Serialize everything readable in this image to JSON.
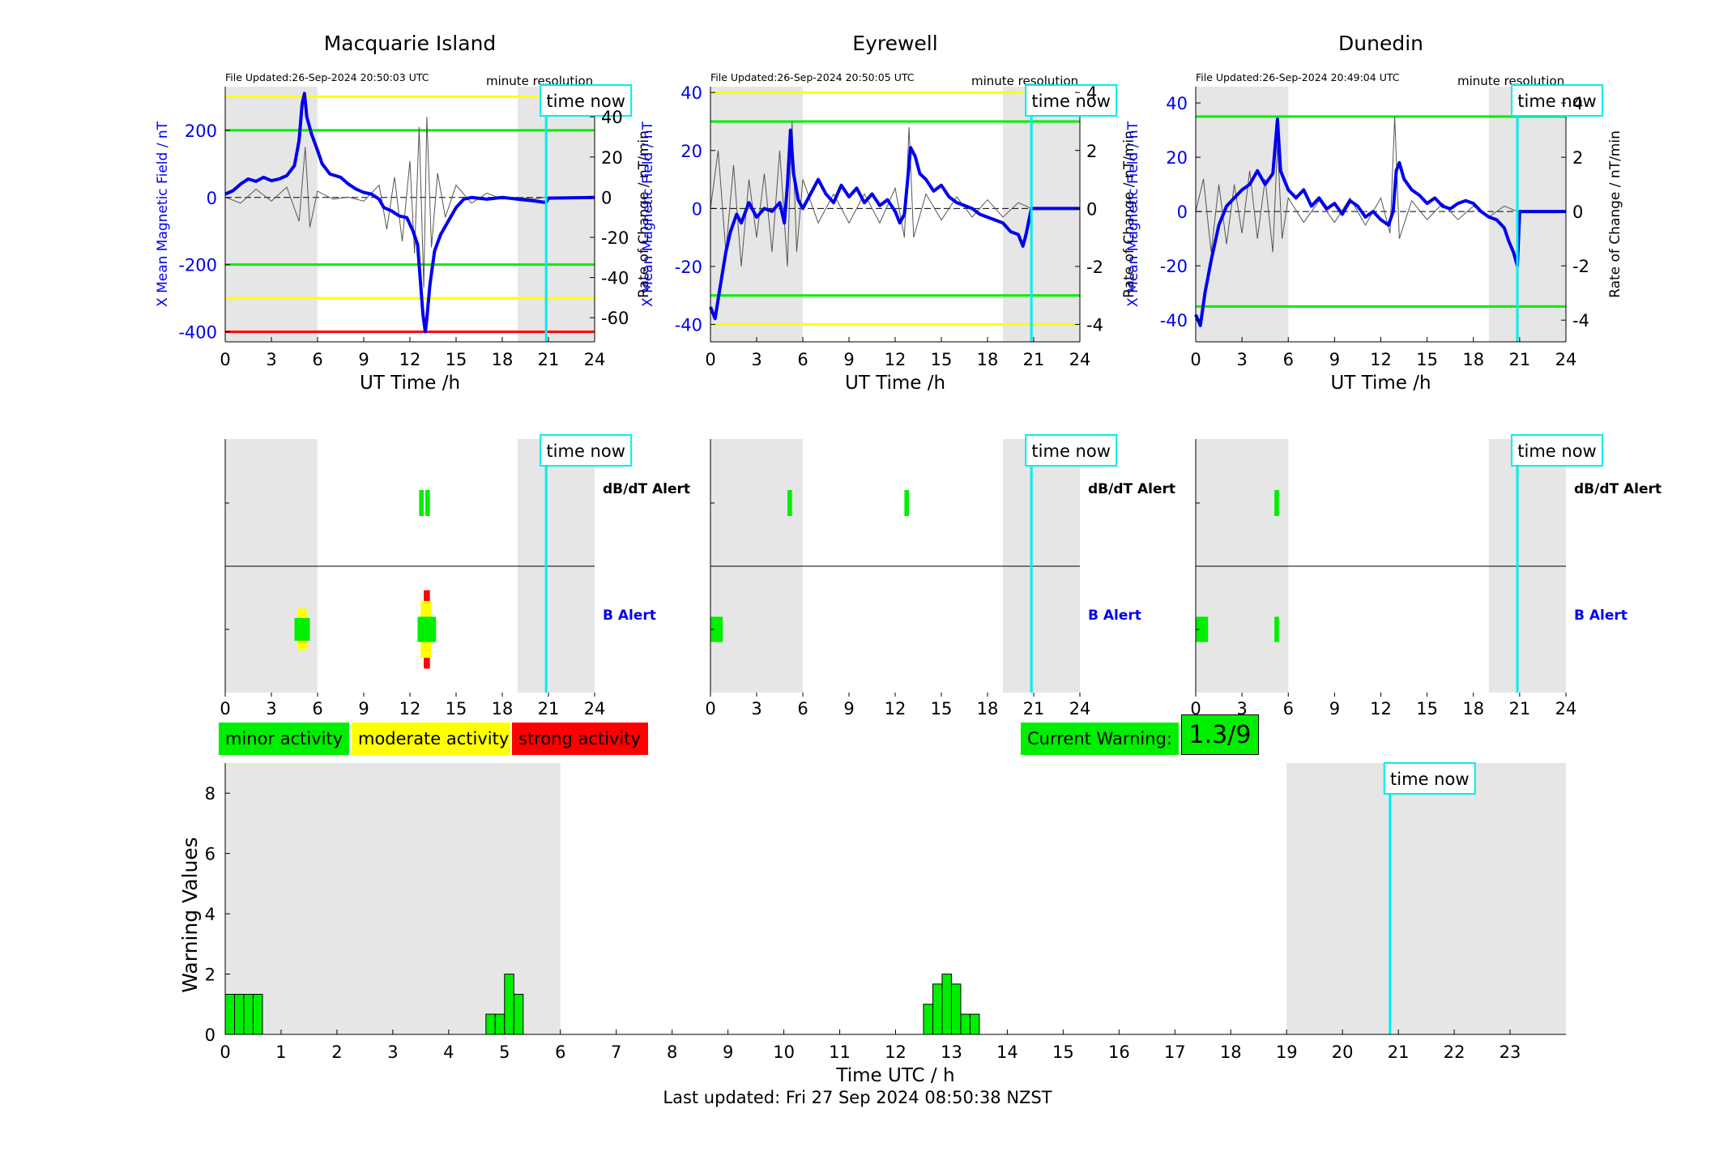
{
  "colors": {
    "shade": "#e6e6e6",
    "field": "#0000ee",
    "rate": "#555555",
    "minor": "#00ee00",
    "moderate": "#ffff00",
    "strong": "#ff0000",
    "now": "#00eeee",
    "b_alert_label": "#0000ee"
  },
  "time_now_label": "time now",
  "minute_resolution": "minute resolution",
  "xlabel": "UT Time /h",
  "left_ylabel": "X Mean Magnetic Field / nT",
  "right_ylabel": "Rate of Change / nT/min",
  "dbdt_label": "dB/dT Alert",
  "b_label": "B Alert",
  "legend": {
    "minor": "minor activity",
    "moderate": "moderate activity",
    "strong": "strong activity"
  },
  "current_warning": {
    "label": "Current Warning:",
    "value": "1.3/9"
  },
  "footer": "Last updated: Fri 27 Sep 2024 08:50:38 NZST",
  "chart_data": [
    {
      "type": "line",
      "station": "Macquarie Island",
      "file_updated": "File Updated:26-Sep-2024 20:50:03 UTC",
      "xlim": [
        0,
        24
      ],
      "ylim": [
        -430,
        330
      ],
      "yticks": [
        -400,
        -200,
        0,
        200
      ],
      "y2lim": [
        -72,
        55
      ],
      "y2ticks": [
        -60,
        -40,
        -20,
        0,
        20,
        40
      ],
      "shade": [
        [
          0,
          6
        ],
        [
          19,
          24
        ]
      ],
      "time_now": 20.85,
      "thresholds": [
        {
          "y": 300,
          "color": "#ffff00"
        },
        {
          "y": 200,
          "color": "#00ee00"
        },
        {
          "y": -200,
          "color": "#00ee00"
        },
        {
          "y": -300,
          "color": "#ffff00"
        },
        {
          "y": -400,
          "color": "#ff0000"
        }
      ],
      "field": [
        [
          0,
          10
        ],
        [
          0.5,
          20
        ],
        [
          1,
          40
        ],
        [
          1.5,
          55
        ],
        [
          2,
          48
        ],
        [
          2.5,
          60
        ],
        [
          3,
          50
        ],
        [
          3.5,
          55
        ],
        [
          4,
          65
        ],
        [
          4.5,
          95
        ],
        [
          4.8,
          170
        ],
        [
          5,
          280
        ],
        [
          5.15,
          310
        ],
        [
          5.3,
          240
        ],
        [
          5.6,
          190
        ],
        [
          6,
          140
        ],
        [
          6.3,
          100
        ],
        [
          6.8,
          70
        ],
        [
          7.5,
          60
        ],
        [
          8,
          40
        ],
        [
          8.5,
          25
        ],
        [
          9,
          15
        ],
        [
          9.5,
          10
        ],
        [
          10,
          -5
        ],
        [
          10.3,
          -30
        ],
        [
          10.8,
          -40
        ],
        [
          11.3,
          -55
        ],
        [
          11.8,
          -60
        ],
        [
          12.2,
          -100
        ],
        [
          12.5,
          -140
        ],
        [
          12.7,
          -260
        ],
        [
          12.85,
          -350
        ],
        [
          13,
          -400
        ],
        [
          13.1,
          -360
        ],
        [
          13.3,
          -260
        ],
        [
          13.6,
          -160
        ],
        [
          14,
          -110
        ],
        [
          14.5,
          -70
        ],
        [
          15,
          -30
        ],
        [
          15.5,
          -5
        ],
        [
          16,
          0
        ],
        [
          17,
          -5
        ],
        [
          18,
          0
        ],
        [
          19,
          -5
        ],
        [
          20,
          -10
        ],
        [
          20.85,
          -15
        ],
        [
          21,
          -2
        ],
        [
          24,
          0
        ]
      ],
      "rate": [
        [
          0,
          0
        ],
        [
          1,
          -3
        ],
        [
          2,
          4
        ],
        [
          3,
          -2
        ],
        [
          4,
          5
        ],
        [
          4.8,
          -12
        ],
        [
          5.2,
          25
        ],
        [
          5.5,
          -15
        ],
        [
          6,
          3
        ],
        [
          7,
          -1
        ],
        [
          8,
          0
        ],
        [
          9,
          -2
        ],
        [
          10,
          6
        ],
        [
          10.5,
          -16
        ],
        [
          11,
          10
        ],
        [
          11.5,
          -22
        ],
        [
          12,
          18
        ],
        [
          12.3,
          -28
        ],
        [
          12.6,
          35
        ],
        [
          12.9,
          -45
        ],
        [
          13.1,
          40
        ],
        [
          13.4,
          -25
        ],
        [
          13.8,
          12
        ],
        [
          14.3,
          -10
        ],
        [
          15,
          6
        ],
        [
          16,
          -3
        ],
        [
          17,
          2
        ],
        [
          18,
          -1
        ],
        [
          19,
          0
        ],
        [
          20,
          -1
        ],
        [
          20.85,
          0
        ],
        [
          24,
          0
        ]
      ],
      "alerts": {
        "dbdt": [
          {
            "x0": 12.6,
            "x1": 12.9,
            "color": "#00ee00"
          },
          {
            "x0": 13.0,
            "x1": 13.3,
            "color": "#00ee00"
          }
        ],
        "b": [
          {
            "x0": 4.7,
            "x1": 5.3,
            "tall": 0.33,
            "color": "#ffff00"
          },
          {
            "x0": 4.5,
            "x1": 5.5,
            "tall": 0.18,
            "color": "#00ee00"
          },
          {
            "x0": 12.9,
            "x1": 13.3,
            "tall": 0.62,
            "color": "#ff0000"
          },
          {
            "x0": 12.7,
            "x1": 13.4,
            "tall": 0.45,
            "color": "#ffff00"
          },
          {
            "x0": 12.5,
            "x1": 13.7,
            "tall": 0.2,
            "color": "#00ee00"
          }
        ]
      }
    },
    {
      "type": "line",
      "station": "Eyrewell",
      "file_updated": "File Updated:26-Sep-2024 20:50:05 UTC",
      "xlim": [
        0,
        24
      ],
      "ylim": [
        -46,
        42
      ],
      "yticks": [
        -40,
        -20,
        0,
        20,
        40
      ],
      "y2lim": [
        -4.6,
        4.2
      ],
      "y2ticks": [
        -4,
        -2,
        0,
        2,
        4
      ],
      "shade": [
        [
          0,
          6
        ],
        [
          19,
          24
        ]
      ],
      "time_now": 20.85,
      "thresholds": [
        {
          "y": 40,
          "color": "#ffff00"
        },
        {
          "y": 30,
          "color": "#00ee00"
        },
        {
          "y": -30,
          "color": "#00ee00"
        },
        {
          "y": -40,
          "color": "#ffff00"
        }
      ],
      "field": [
        [
          0,
          -34
        ],
        [
          0.3,
          -38
        ],
        [
          0.6,
          -28
        ],
        [
          1,
          -15
        ],
        [
          1.3,
          -8
        ],
        [
          1.7,
          -2
        ],
        [
          2,
          -5
        ],
        [
          2.5,
          2
        ],
        [
          3,
          -3
        ],
        [
          3.5,
          0
        ],
        [
          4,
          -1
        ],
        [
          4.5,
          2
        ],
        [
          4.8,
          -5
        ],
        [
          5,
          8
        ],
        [
          5.2,
          27
        ],
        [
          5.4,
          12
        ],
        [
          5.7,
          3
        ],
        [
          6,
          0
        ],
        [
          6.5,
          5
        ],
        [
          7,
          10
        ],
        [
          7.5,
          5
        ],
        [
          8,
          2
        ],
        [
          8.5,
          8
        ],
        [
          9,
          4
        ],
        [
          9.5,
          7
        ],
        [
          10,
          2
        ],
        [
          10.5,
          5
        ],
        [
          11,
          1
        ],
        [
          11.5,
          3
        ],
        [
          12,
          -1
        ],
        [
          12.3,
          -5
        ],
        [
          12.6,
          -2
        ],
        [
          12.9,
          15
        ],
        [
          13,
          21
        ],
        [
          13.3,
          18
        ],
        [
          13.6,
          12
        ],
        [
          14,
          10
        ],
        [
          14.5,
          6
        ],
        [
          15,
          8
        ],
        [
          15.5,
          4
        ],
        [
          16,
          2
        ],
        [
          17,
          0
        ],
        [
          17.5,
          -2
        ],
        [
          18,
          -3
        ],
        [
          18.5,
          -4
        ],
        [
          19,
          -5
        ],
        [
          19.5,
          -8
        ],
        [
          20,
          -9
        ],
        [
          20.3,
          -13
        ],
        [
          20.5,
          -9
        ],
        [
          20.85,
          0
        ],
        [
          24,
          0
        ]
      ],
      "rate": [
        [
          0,
          0
        ],
        [
          0.5,
          2
        ],
        [
          1,
          -1.5
        ],
        [
          1.5,
          1.5
        ],
        [
          2,
          -2
        ],
        [
          2.5,
          1
        ],
        [
          3,
          -1
        ],
        [
          3.5,
          1.2
        ],
        [
          4,
          -1.5
        ],
        [
          4.5,
          2
        ],
        [
          5,
          -2
        ],
        [
          5.3,
          3
        ],
        [
          5.6,
          -1.5
        ],
        [
          6,
          1
        ],
        [
          7,
          -0.5
        ],
        [
          8,
          0.5
        ],
        [
          9,
          -0.5
        ],
        [
          10,
          0.5
        ],
        [
          11,
          -0.5
        ],
        [
          12,
          0.7
        ],
        [
          12.6,
          -1
        ],
        [
          12.9,
          2.8
        ],
        [
          13.2,
          -1
        ],
        [
          14,
          0.5
        ],
        [
          15,
          -0.4
        ],
        [
          16,
          0.4
        ],
        [
          17,
          -0.3
        ],
        [
          18,
          0.3
        ],
        [
          19,
          -0.3
        ],
        [
          20,
          0.2
        ],
        [
          20.85,
          0
        ],
        [
          24,
          0
        ]
      ],
      "alerts": {
        "dbdt": [
          {
            "x0": 5.0,
            "x1": 5.3,
            "color": "#00ee00"
          },
          {
            "x0": 12.6,
            "x1": 12.9,
            "color": "#00ee00"
          }
        ],
        "b": [
          {
            "x0": 0.0,
            "x1": 0.8,
            "tall": 0.2,
            "color": "#00ee00"
          }
        ]
      }
    },
    {
      "type": "line",
      "station": "Dunedin",
      "file_updated": "File Updated:26-Sep-2024 20:49:04 UTC",
      "xlim": [
        0,
        24
      ],
      "ylim": [
        -48,
        46
      ],
      "yticks": [
        -40,
        -20,
        0,
        20,
        40
      ],
      "y2lim": [
        -4.8,
        4.6
      ],
      "y2ticks": [
        -4,
        -2,
        0,
        2,
        4
      ],
      "shade": [
        [
          0,
          6
        ],
        [
          19,
          24
        ]
      ],
      "time_now": 20.85,
      "thresholds": [
        {
          "y": 35,
          "color": "#00ee00"
        },
        {
          "y": -35,
          "color": "#00ee00"
        }
      ],
      "field": [
        [
          0,
          -38
        ],
        [
          0.3,
          -42
        ],
        [
          0.6,
          -30
        ],
        [
          1,
          -18
        ],
        [
          1.5,
          -5
        ],
        [
          2,
          2
        ],
        [
          2.5,
          5
        ],
        [
          3,
          8
        ],
        [
          3.5,
          10
        ],
        [
          4,
          15
        ],
        [
          4.5,
          10
        ],
        [
          5,
          14
        ],
        [
          5.3,
          34
        ],
        [
          5.5,
          15
        ],
        [
          6,
          8
        ],
        [
          6.5,
          5
        ],
        [
          7,
          8
        ],
        [
          7.5,
          2
        ],
        [
          8,
          5
        ],
        [
          8.5,
          1
        ],
        [
          9,
          3
        ],
        [
          9.5,
          -1
        ],
        [
          10,
          4
        ],
        [
          10.5,
          2
        ],
        [
          11,
          -2
        ],
        [
          11.5,
          0
        ],
        [
          12,
          -3
        ],
        [
          12.5,
          -5
        ],
        [
          12.8,
          0
        ],
        [
          13,
          15
        ],
        [
          13.2,
          18
        ],
        [
          13.5,
          12
        ],
        [
          14,
          8
        ],
        [
          14.5,
          6
        ],
        [
          15,
          3
        ],
        [
          15.5,
          5
        ],
        [
          16,
          2
        ],
        [
          16.5,
          1
        ],
        [
          17,
          3
        ],
        [
          17.5,
          4
        ],
        [
          18,
          3
        ],
        [
          18.5,
          0
        ],
        [
          19,
          -2
        ],
        [
          19.5,
          -3
        ],
        [
          20,
          -6
        ],
        [
          20.3,
          -11
        ],
        [
          20.6,
          -15
        ],
        [
          20.85,
          -20
        ],
        [
          21,
          0
        ],
        [
          24,
          0
        ]
      ],
      "rate": [
        [
          0,
          0
        ],
        [
          0.5,
          1.2
        ],
        [
          1,
          -1.5
        ],
        [
          1.5,
          1
        ],
        [
          2,
          -1.2
        ],
        [
          2.5,
          1
        ],
        [
          3,
          -0.8
        ],
        [
          3.5,
          1.5
        ],
        [
          4,
          -1
        ],
        [
          4.5,
          1.2
        ],
        [
          5,
          -1.5
        ],
        [
          5.3,
          2.5
        ],
        [
          5.6,
          -1
        ],
        [
          6,
          0.5
        ],
        [
          7,
          -0.4
        ],
        [
          8,
          0.4
        ],
        [
          9,
          -0.4
        ],
        [
          10,
          0.5
        ],
        [
          11,
          -0.5
        ],
        [
          12,
          0.5
        ],
        [
          12.6,
          -0.8
        ],
        [
          12.9,
          3.5
        ],
        [
          13.2,
          -1
        ],
        [
          14,
          0.4
        ],
        [
          15,
          -0.3
        ],
        [
          16,
          0.3
        ],
        [
          17,
          -0.3
        ],
        [
          18,
          0.2
        ],
        [
          19,
          -0.2
        ],
        [
          20,
          0.2
        ],
        [
          20.85,
          0
        ],
        [
          24,
          0
        ]
      ],
      "alerts": {
        "dbdt": [
          {
            "x0": 5.1,
            "x1": 5.4,
            "color": "#00ee00"
          }
        ],
        "b": [
          {
            "x0": 0.0,
            "x1": 0.8,
            "tall": 0.2,
            "color": "#00ee00"
          },
          {
            "x0": 5.1,
            "x1": 5.4,
            "tall": 0.2,
            "color": "#00ee00"
          }
        ]
      }
    },
    {
      "type": "bar",
      "xlabel": "Time UTC / h",
      "ylabel": "Warning Values",
      "xlim": [
        0,
        24
      ],
      "ylim": [
        0,
        9
      ],
      "yticks": [
        0,
        2,
        4,
        6,
        8
      ],
      "xticks": [
        0,
        1,
        2,
        3,
        4,
        5,
        6,
        7,
        8,
        9,
        10,
        11,
        12,
        13,
        14,
        15,
        16,
        17,
        18,
        19,
        20,
        21,
        22,
        23
      ],
      "shade": [
        [
          0,
          6
        ],
        [
          19,
          24
        ]
      ],
      "time_now": 20.85,
      "bar_width_h": 0.1667,
      "bars": [
        {
          "x": 0.0,
          "value": 1.33
        },
        {
          "x": 0.167,
          "value": 1.33
        },
        {
          "x": 0.333,
          "value": 1.33
        },
        {
          "x": 0.5,
          "value": 1.33
        },
        {
          "x": 4.667,
          "value": 0.67
        },
        {
          "x": 4.833,
          "value": 0.67
        },
        {
          "x": 5.0,
          "value": 2.0
        },
        {
          "x": 5.167,
          "value": 1.33
        },
        {
          "x": 12.5,
          "value": 1.0
        },
        {
          "x": 12.667,
          "value": 1.67
        },
        {
          "x": 12.833,
          "value": 2.0
        },
        {
          "x": 13.0,
          "value": 1.67
        },
        {
          "x": 13.167,
          "value": 0.67
        },
        {
          "x": 13.333,
          "value": 0.67
        }
      ],
      "bar_color": "#00ee00"
    }
  ]
}
